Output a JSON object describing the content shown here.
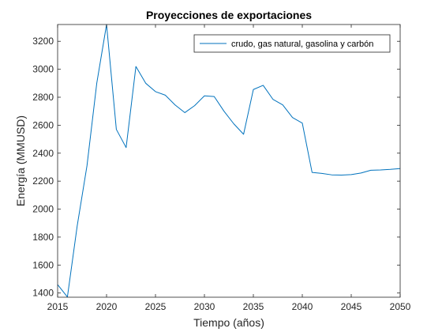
{
  "chart_data": {
    "type": "line",
    "title": "Proyecciones de exportaciones",
    "xlabel": "Tiempo (años)",
    "ylabel": "Energía (MMUSD)",
    "xlim": [
      2015,
      2050
    ],
    "ylim": [
      1370,
      3320
    ],
    "xticks": [
      2015,
      2020,
      2025,
      2030,
      2035,
      2040,
      2045,
      2050
    ],
    "yticks": [
      1400,
      1600,
      1800,
      2000,
      2200,
      2400,
      2600,
      2800,
      3000,
      3200
    ],
    "grid": false,
    "legend_position": "top-right",
    "series": [
      {
        "name": "crudo, gas natural, gasolina y carbón",
        "color": "#0072bd",
        "x": [
          2015,
          2016,
          2017,
          2018,
          2019,
          2020,
          2021,
          2022,
          2023,
          2024,
          2025,
          2026,
          2027,
          2028,
          2029,
          2030,
          2031,
          2032,
          2033,
          2034,
          2035,
          2036,
          2037,
          2038,
          2039,
          2040,
          2041,
          2042,
          2043,
          2044,
          2045,
          2046,
          2047,
          2048,
          2049,
          2050
        ],
        "values": [
          1460,
          1372,
          1880,
          2310,
          2900,
          3320,
          2570,
          2440,
          3020,
          2900,
          2840,
          2815,
          2745,
          2690,
          2740,
          2810,
          2805,
          2700,
          2610,
          2535,
          2855,
          2885,
          2785,
          2745,
          2655,
          2615,
          2262,
          2255,
          2245,
          2243,
          2247,
          2258,
          2278,
          2280,
          2284,
          2290
        ]
      }
    ]
  }
}
